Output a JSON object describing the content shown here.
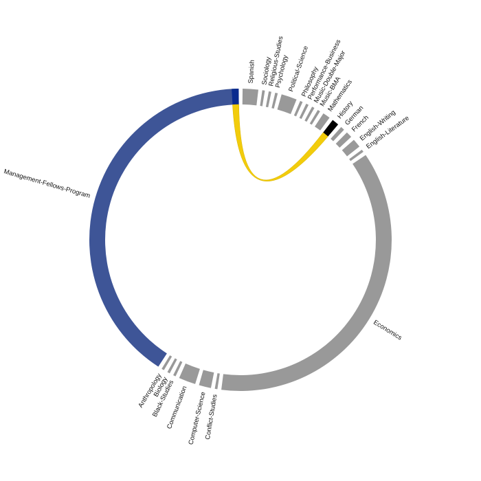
{
  "chart_data": {
    "type": "chord",
    "title": "",
    "colors": {
      "default": "#999999",
      "highlight_source": "#3e5597",
      "highlight_source_edge": "#0a2b8e",
      "highlight_target": "#000000",
      "ribbon": "#f2cc0c"
    },
    "groups": [
      {
        "name": "Spanish",
        "value": 3.6
      },
      {
        "name": "Sociology",
        "value": 0.6
      },
      {
        "name": "Religious-Studies",
        "value": 0.6
      },
      {
        "name": "Psychology",
        "value": 0.6
      },
      {
        "name": "Political-Science",
        "value": 3.6
      },
      {
        "name": "Philosophy",
        "value": 0.6
      },
      {
        "name": "Performance-Business",
        "value": 0.6
      },
      {
        "name": "Music-Double-Major",
        "value": 0.6
      },
      {
        "name": "Music-BMA",
        "value": 0.6
      },
      {
        "name": "Mathematics",
        "value": 1.7
      },
      {
        "name": "History",
        "value": 1.6
      },
      {
        "name": "German",
        "value": 0.9
      },
      {
        "name": "French",
        "value": 1.4
      },
      {
        "name": "English-Writing",
        "value": 2.0
      },
      {
        "name": "English-Literature",
        "value": 0.6
      },
      {
        "name": "Economics",
        "value": 79
      },
      {
        "name": "Conflict-Studies",
        "value": 0.6
      },
      {
        "name": "Computer-Science",
        "value": 2.8
      },
      {
        "name": "Communication",
        "value": 3.9
      },
      {
        "name": "Black-Studies",
        "value": 0.6
      },
      {
        "name": "Biology",
        "value": 0.6
      },
      {
        "name": "Anthropology",
        "value": 0.6
      },
      {
        "name": "Management-Fellows-Program",
        "value": 88
      }
    ],
    "highlighted_chord": {
      "source": "Management-Fellows-Program",
      "target": "History",
      "value": 1.6
    }
  }
}
